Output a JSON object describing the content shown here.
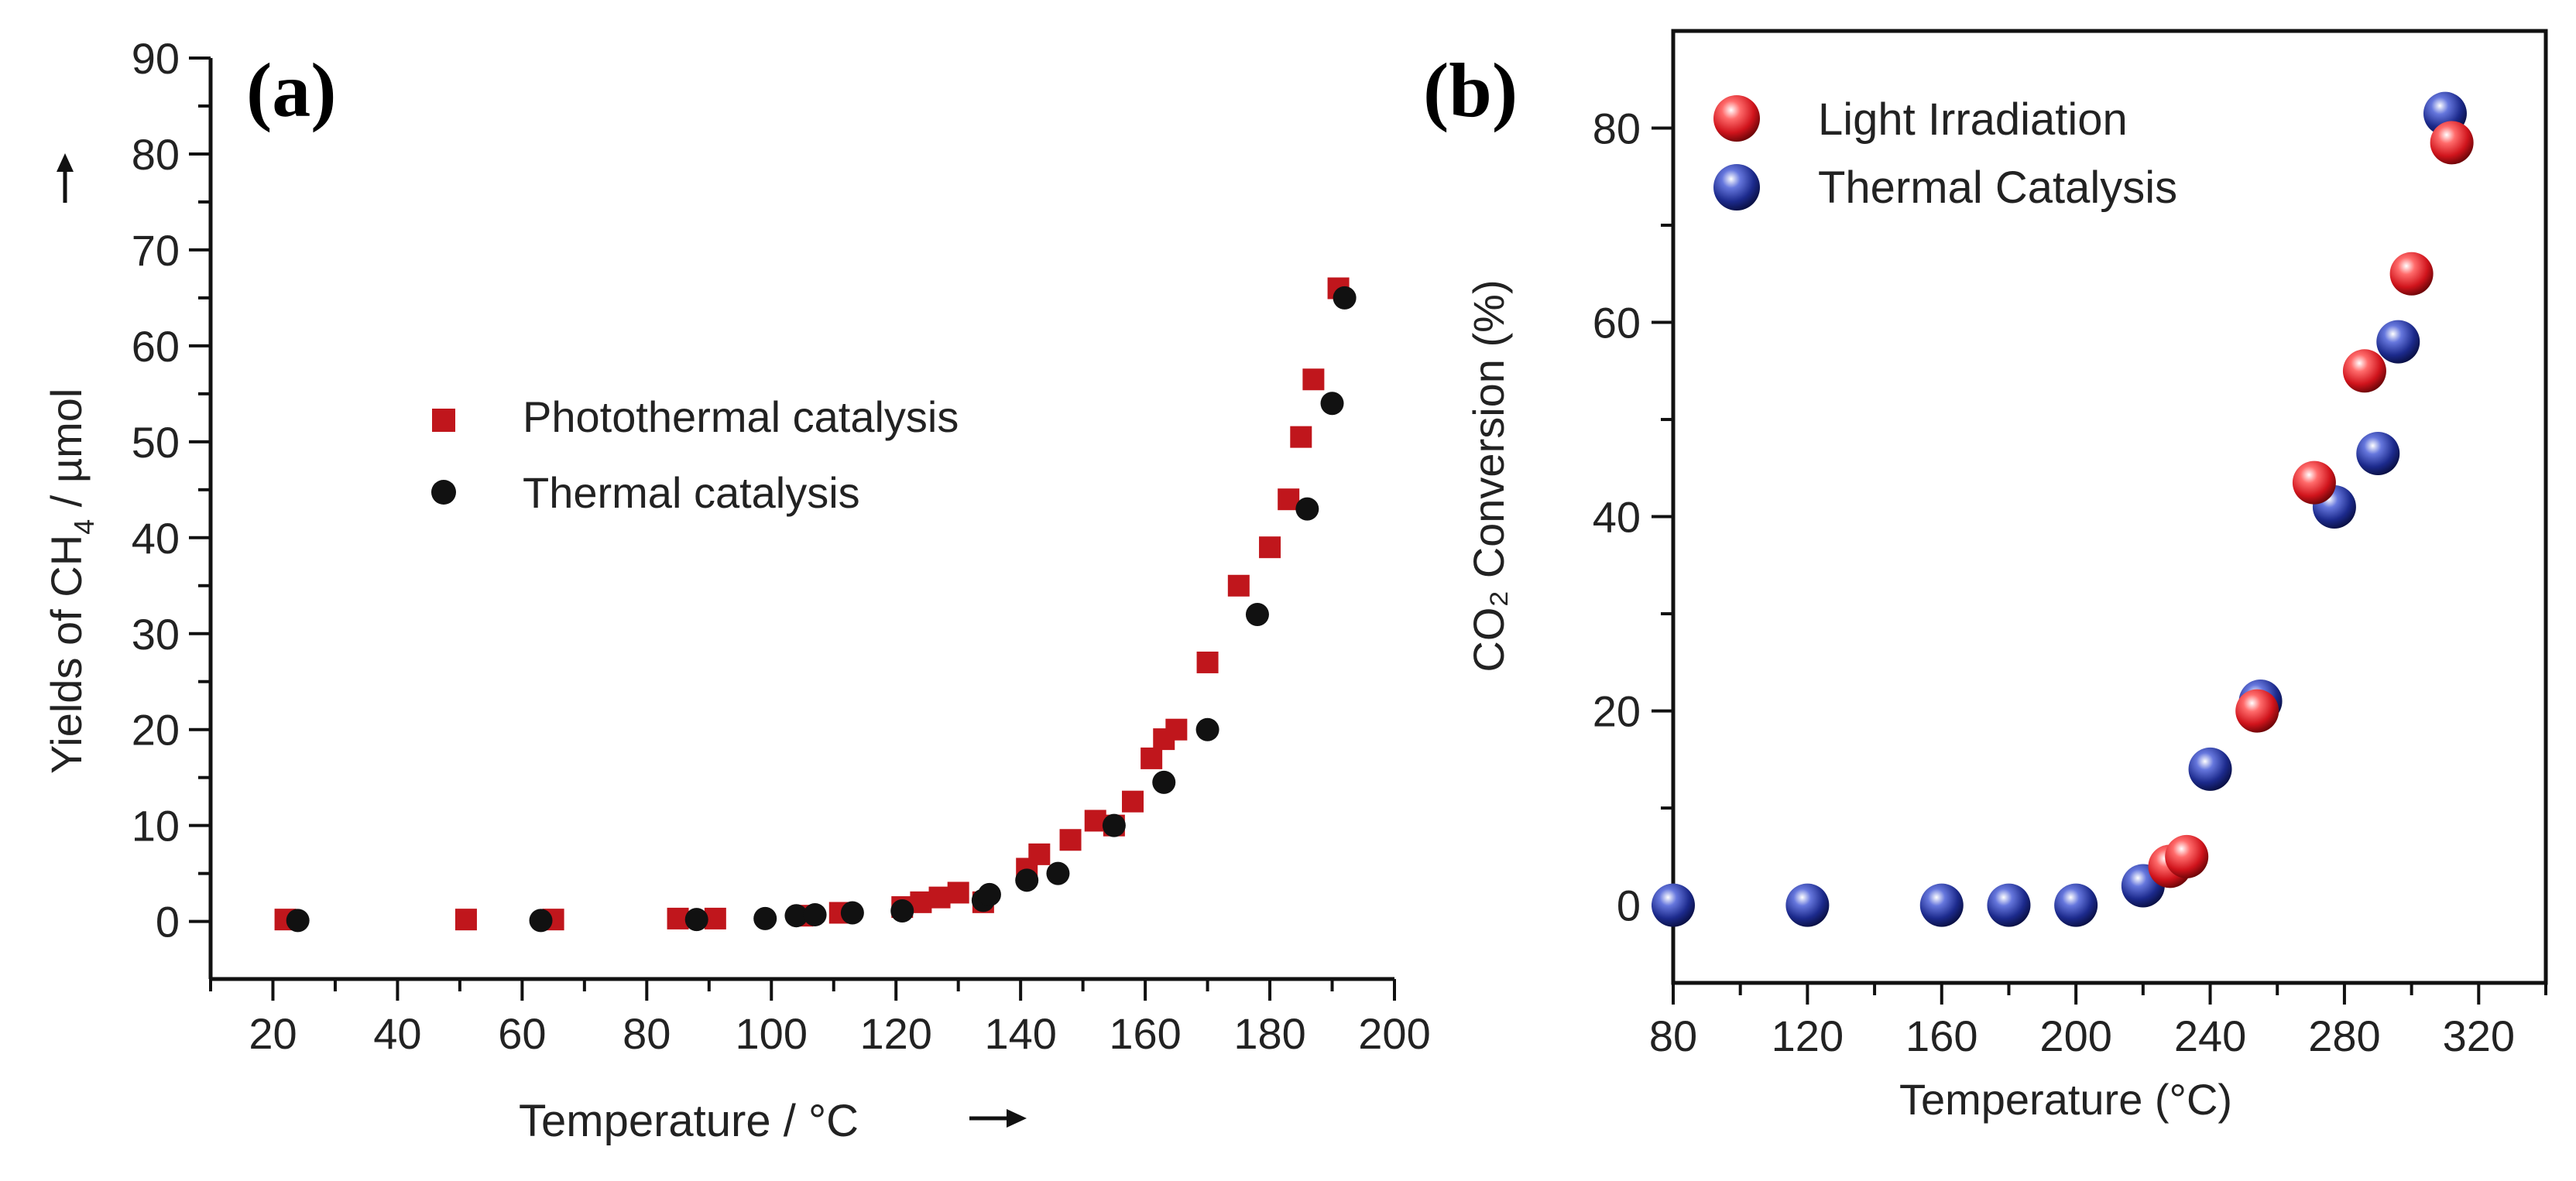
{
  "chart_data": [
    {
      "type": "scatter",
      "panel_label": "(a)",
      "title": "",
      "xlabel": "Temperature / °C",
      "xlabel_arrow": "→",
      "ylabel_parts": {
        "pre": "Yields of CH",
        "sub": "4",
        "post": " / µmol",
        "arrow": "→"
      },
      "xlim": [
        10,
        200
      ],
      "ylim": [
        -6,
        90
      ],
      "xticks": [
        20,
        40,
        60,
        80,
        100,
        120,
        140,
        160,
        180,
        200
      ],
      "yticks": [
        0,
        10,
        20,
        30,
        40,
        50,
        60,
        70,
        80,
        90
      ],
      "xtick_labels": [
        "20",
        "40",
        "60",
        "80",
        "100",
        "120",
        "140",
        "160",
        "180",
        "200"
      ],
      "ytick_labels": [
        "0",
        "10",
        "20",
        "30",
        "40",
        "50",
        "60",
        "70",
        "80",
        "90"
      ],
      "legend_position": "center-left",
      "series": [
        {
          "name": "Photothermal catalysis",
          "marker": "square",
          "color": "#c0161c",
          "x": [
            22,
            51,
            65,
            85,
            91,
            105,
            111,
            121,
            124,
            127,
            130,
            134,
            141,
            143,
            148,
            152,
            155,
            158,
            161,
            163,
            165,
            170,
            175,
            180,
            183,
            185,
            187,
            191
          ],
          "y": [
            0.2,
            0.2,
            0.2,
            0.3,
            0.3,
            0.6,
            0.9,
            1.5,
            2.0,
            2.5,
            3.0,
            2.0,
            5.5,
            7.0,
            8.5,
            10.5,
            10.0,
            12.5,
            17.0,
            19.0,
            20.0,
            27.0,
            35.0,
            39.0,
            44.0,
            50.5,
            56.5,
            66.0
          ]
        },
        {
          "name": "Thermal catalysis",
          "marker": "circle",
          "color": "#111111",
          "x": [
            24,
            63,
            88,
            99,
            104,
            107,
            113,
            121,
            134,
            135,
            141,
            146,
            155,
            163,
            170,
            178,
            186,
            190,
            192
          ],
          "y": [
            0.1,
            0.1,
            0.2,
            0.3,
            0.6,
            0.7,
            0.9,
            1.1,
            2.2,
            2.8,
            4.3,
            5.0,
            10.0,
            14.5,
            20.0,
            32.0,
            43.0,
            54.0,
            65.0
          ]
        }
      ]
    },
    {
      "type": "scatter",
      "panel_label": "(b)",
      "title": "",
      "xlabel": "Temperature (°C)",
      "ylabel": "CO₂ Conversion (%)",
      "xlim": [
        80,
        340
      ],
      "ylim": [
        -8,
        90
      ],
      "xticks": [
        80,
        120,
        160,
        200,
        240,
        280,
        320
      ],
      "yticks": [
        0,
        20,
        40,
        60,
        80
      ],
      "xtick_labels": [
        "80",
        "120",
        "160",
        "200",
        "240",
        "280",
        "320"
      ],
      "ytick_labels": [
        "0",
        "20",
        "40",
        "60",
        "80"
      ],
      "legend_position": "top-left",
      "series": [
        {
          "name": "Light Irradiation",
          "marker": "sphere",
          "color": "#d0141c",
          "x": [
            228,
            233,
            254,
            271,
            286,
            300,
            312
          ],
          "y": [
            4.0,
            5.0,
            20.0,
            43.5,
            55.0,
            65.0,
            78.5
          ]
        },
        {
          "name": "Thermal Catalysis",
          "marker": "sphere",
          "color": "#1c2a8c",
          "x": [
            80,
            120,
            160,
            180,
            200,
            220,
            240,
            255,
            277,
            290,
            296,
            310
          ],
          "y": [
            0,
            0,
            0,
            0,
            0,
            2.0,
            14.0,
            21.0,
            41.0,
            46.5,
            58.0,
            81.5
          ]
        }
      ]
    }
  ]
}
